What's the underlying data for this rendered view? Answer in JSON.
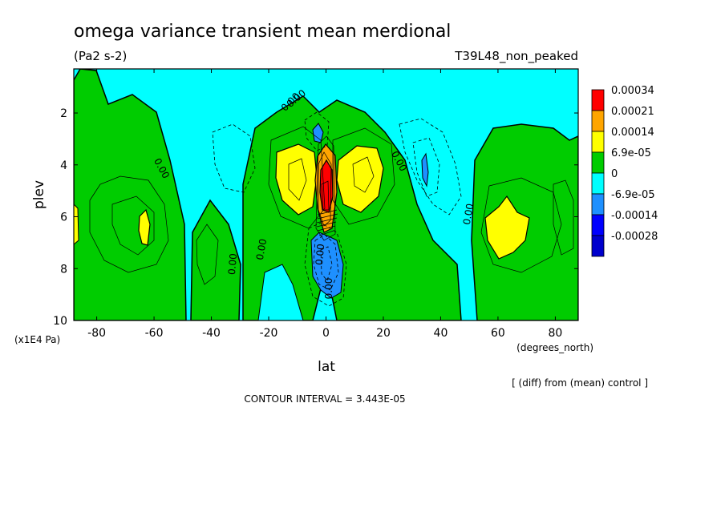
{
  "chart_data": {
    "type": "contour",
    "title": "omega variance transient mean merdional",
    "units": "(Pa2 s-2)",
    "run_label": "T39L48_non_peaked",
    "xlabel": "lat",
    "x_unit_label": "(degrees_north)",
    "ylabel": "plev",
    "y_unit_label": "(x1E4 Pa)",
    "xlim": [
      -88,
      88
    ],
    "ylim": [
      10,
      0.3
    ],
    "x_ticks": [
      "-80",
      "-60",
      "-40",
      "-20",
      "0",
      "20",
      "40",
      "60",
      "80"
    ],
    "y_ticks": [
      "2",
      "4",
      "6",
      "8",
      "10"
    ],
    "x_tick_values": [
      -80,
      -60,
      -40,
      -20,
      0,
      20,
      40,
      60,
      80
    ],
    "y_tick_values": [
      2,
      4,
      6,
      8,
      10
    ],
    "legend": {
      "labels": [
        "0.00034",
        "0.00021",
        "0.00014",
        "6.9e-05",
        "0",
        "-6.9e-05",
        "-0.00014",
        "-0.00028"
      ],
      "colors": [
        "#ff0000",
        "#ffa500",
        "#ffff00",
        "#00cc00",
        "#00ffff",
        "#1e90ff",
        "#0000ff",
        "#0000cd"
      ],
      "position": "right"
    },
    "contour_labels": [
      "0.00",
      "0.00",
      "0.00",
      "0.00",
      "0.00",
      "0.00",
      "0.00",
      "0.00",
      "0.00"
    ],
    "annotation": "[ (diff) from (mean) control ]",
    "contour_interval": "CONTOUR INTERVAL = 3.443E-05"
  }
}
